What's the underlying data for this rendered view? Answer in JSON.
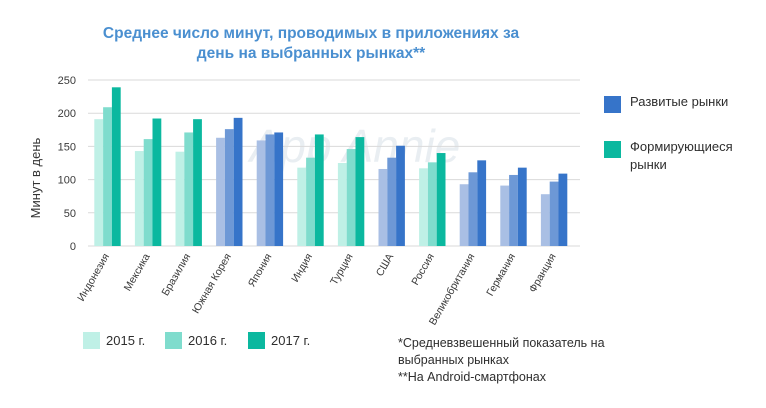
{
  "chart_data": {
    "type": "bar",
    "title_lines": [
      "Среднее число минут, проводимых в приложениях за",
      "день на выбранных рынках**"
    ],
    "ylabel": "Минут в день",
    "xlabel": "",
    "ylim": [
      0,
      250
    ],
    "yticks": [
      0,
      50,
      100,
      150,
      200,
      250
    ],
    "grid": true,
    "categories": [
      "Индонезия",
      "Мексика",
      "Бразилия",
      "Южная Корея",
      "Япония",
      "Индия",
      "Турция",
      "США",
      "Россия",
      "Великобритания",
      "Германия",
      "Франция"
    ],
    "market_type": [
      "emerging",
      "emerging",
      "emerging",
      "developed",
      "developed",
      "emerging",
      "emerging",
      "developed",
      "emerging",
      "developed",
      "developed",
      "developed"
    ],
    "series": [
      {
        "name": "2015 г.",
        "values": [
          191,
          143,
          142,
          163,
          159,
          118,
          125,
          116,
          117,
          93,
          91,
          78
        ]
      },
      {
        "name": "2016 г.",
        "values": [
          209,
          161,
          171,
          176,
          168,
          133,
          146,
          133,
          126,
          111,
          107,
          97
        ]
      },
      {
        "name": "2017 г.",
        "values": [
          239,
          192,
          191,
          193,
          171,
          168,
          164,
          151,
          140,
          129,
          118,
          109
        ]
      }
    ],
    "colors": {
      "emerging": [
        "#bff0e6",
        "#7fdccd",
        "#0bb89f"
      ],
      "developed": [
        "#a9bfe4",
        "#6d98d6",
        "#3674c9"
      ]
    },
    "gridline_color": "#dadada"
  },
  "market_legend": [
    {
      "label_lines": [
        "Развитые рынки"
      ],
      "color": "#3674c9"
    },
    {
      "label_lines": [
        "Формирующиеся",
        "рынки"
      ],
      "color": "#0bb89f"
    }
  ],
  "year_legend": [
    {
      "label": "2015 г.",
      "color": "#bff0e6"
    },
    {
      "label": "2016 г.",
      "color": "#7fdccd"
    },
    {
      "label": "2017 г.",
      "color": "#0bb89f"
    }
  ],
  "footnotes": [
    "*Средневзвешенный показатель на",
    "выбранных рынках",
    "**На Android-смартфонах"
  ],
  "watermark": "App Annie"
}
